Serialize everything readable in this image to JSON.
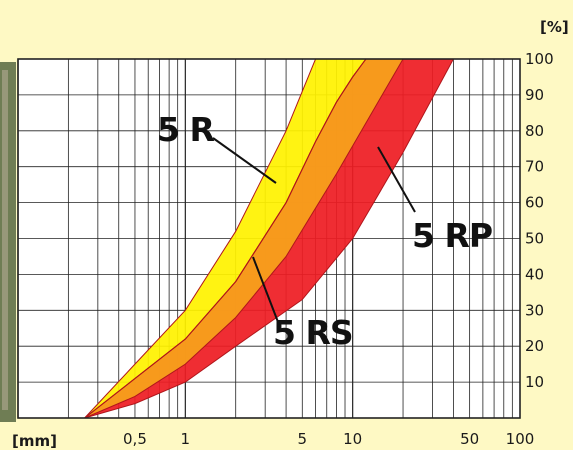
{
  "chart_data": {
    "type": "area",
    "title": "",
    "x_unit_label": "[mm]",
    "y_unit_label": "[%]",
    "x_scale": "log",
    "xlim": [
      0.1,
      100
    ],
    "ylim": [
      0,
      100
    ],
    "grid": true,
    "x_ticks": [
      {
        "value": 0.5,
        "label": "0,5"
      },
      {
        "value": 1,
        "label": "1"
      },
      {
        "value": 5,
        "label": "5"
      },
      {
        "value": 10,
        "label": "10"
      },
      {
        "value": 50,
        "label": "50"
      },
      {
        "value": 100,
        "label": "100"
      }
    ],
    "y_ticks": [
      {
        "value": 10,
        "label": "10"
      },
      {
        "value": 20,
        "label": "20"
      },
      {
        "value": 30,
        "label": "30"
      },
      {
        "value": 40,
        "label": "40"
      },
      {
        "value": 50,
        "label": "50"
      },
      {
        "value": 60,
        "label": "60"
      },
      {
        "value": 70,
        "label": "70"
      },
      {
        "value": 80,
        "label": "80"
      },
      {
        "value": 90,
        "label": "90"
      },
      {
        "value": 100,
        "label": "100"
      }
    ],
    "series": [
      {
        "name": "5 RP",
        "color": "#ee1d23",
        "upper": [
          [
            0.25,
            0
          ],
          [
            0.5,
            11
          ],
          [
            1,
            22
          ],
          [
            2,
            38
          ],
          [
            4,
            60
          ],
          [
            6,
            77
          ],
          [
            8,
            88
          ],
          [
            10,
            95
          ],
          [
            12,
            100
          ]
        ],
        "lower": [
          [
            0.25,
            0
          ],
          [
            0.5,
            4
          ],
          [
            1,
            10
          ],
          [
            2,
            20
          ],
          [
            5,
            33
          ],
          [
            10,
            50
          ],
          [
            20,
            74
          ],
          [
            40,
            100
          ]
        ]
      },
      {
        "name": "5 RS",
        "color": "#f7a21b",
        "upper": [
          [
            0.25,
            0
          ],
          [
            0.5,
            11
          ],
          [
            1,
            22
          ],
          [
            2,
            38
          ],
          [
            4,
            60
          ],
          [
            6,
            77
          ],
          [
            8,
            88
          ],
          [
            10,
            95
          ],
          [
            12,
            100
          ]
        ],
        "lower": [
          [
            0.25,
            0
          ],
          [
            0.5,
            6
          ],
          [
            1,
            15
          ],
          [
            2,
            28
          ],
          [
            4,
            45
          ],
          [
            8,
            68
          ],
          [
            20,
            100
          ]
        ]
      },
      {
        "name": "5 R",
        "color": "#fff200",
        "upper": [
          [
            0.25,
            0
          ],
          [
            0.5,
            15
          ],
          [
            1,
            30
          ],
          [
            2,
            52
          ],
          [
            4,
            80
          ],
          [
            6,
            100
          ],
          [
            8,
            100
          ]
        ],
        "lower": [
          [
            0.25,
            0
          ],
          [
            0.5,
            11
          ],
          [
            1,
            22
          ],
          [
            2,
            38
          ],
          [
            4,
            60
          ],
          [
            6,
            77
          ],
          [
            8,
            88
          ],
          [
            10,
            95
          ],
          [
            12,
            100
          ]
        ]
      }
    ],
    "labels": [
      {
        "text": "5 R",
        "series": "5 R"
      },
      {
        "text": "5 RS",
        "series": "5 RS"
      },
      {
        "text": "5 RP",
        "series": "5 RP"
      }
    ]
  }
}
